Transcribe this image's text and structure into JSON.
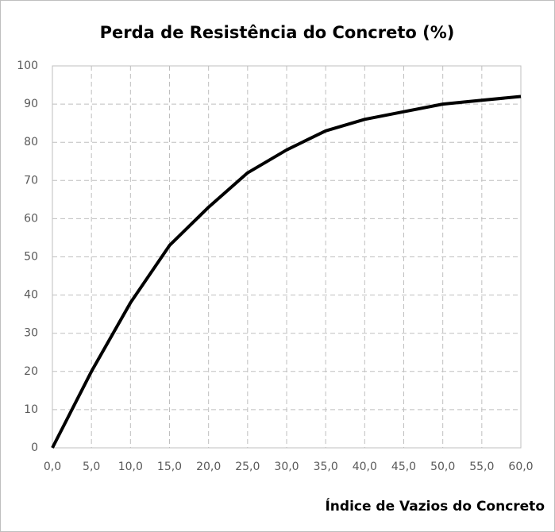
{
  "chart_data": {
    "type": "line",
    "title": "Perda de Resistência do Concreto (%)",
    "x_label": "Índice de Vazios do Concreto",
    "x": [
      0,
      5,
      10,
      15,
      20,
      25,
      30,
      35,
      40,
      45,
      50,
      55,
      60
    ],
    "values": [
      0,
      20,
      38,
      53,
      63,
      72,
      78,
      83,
      86,
      88,
      90,
      91,
      92
    ],
    "color": "#000000",
    "xlim": [
      0,
      60
    ],
    "xticks": [
      {
        "value": 0,
        "label": "0,0"
      },
      {
        "value": 5,
        "label": "5,0"
      },
      {
        "value": 10,
        "label": "10,0"
      },
      {
        "value": 15,
        "label": "15,0"
      },
      {
        "value": 20,
        "label": "20,0"
      },
      {
        "value": 25,
        "label": "25,0"
      },
      {
        "value": 30,
        "label": "30,0"
      },
      {
        "value": 35,
        "label": "35,0"
      },
      {
        "value": 40,
        "label": "40,0"
      },
      {
        "value": 45,
        "label": "45,0"
      },
      {
        "value": 50,
        "label": "50,0"
      },
      {
        "value": 55,
        "label": "55,0"
      },
      {
        "value": 60,
        "label": "60,0"
      }
    ],
    "ylim": [
      0,
      100
    ],
    "yticks": [
      0,
      10,
      20,
      30,
      40,
      50,
      60,
      70,
      80,
      90,
      100
    ],
    "grid": true
  }
}
